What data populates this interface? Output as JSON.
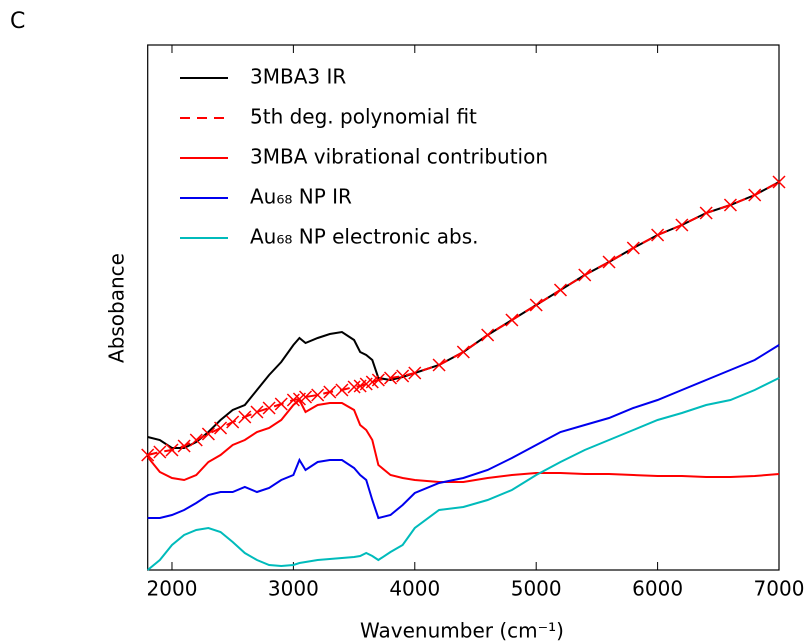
{
  "chart_data": {
    "type": "line",
    "panel_label": "C",
    "xlabel": "Wavenumber (cm⁻¹)",
    "ylabel": "Absobance",
    "x": [
      1800,
      1900,
      2000,
      2100,
      2200,
      2300,
      2400,
      2500,
      2600,
      2700,
      2800,
      2900,
      3000,
      3050,
      3100,
      3200,
      3300,
      3400,
      3500,
      3550,
      3600,
      3650,
      3700,
      3800,
      3900,
      4000,
      4200,
      4400,
      4600,
      4800,
      5000,
      5200,
      5400,
      5600,
      5800,
      6000,
      6200,
      6400,
      6600,
      6800,
      7000
    ],
    "series": [
      {
        "name": "3MBA3 IR",
        "color": "#000000",
        "values": [
          133,
          130,
          122,
          122,
          128,
          138,
          150,
          160,
          165,
          180,
          195,
          208,
          225,
          232,
          227,
          232,
          236,
          238,
          230,
          218,
          215,
          210,
          192,
          190,
          193,
          197,
          205,
          218,
          235,
          250,
          265,
          280,
          295,
          308,
          322,
          335,
          345,
          357,
          365,
          375,
          388
        ]
      },
      {
        "name": "5th deg. polynomial fit",
        "color": "#ff0000",
        "dashed": true,
        "marker": "x",
        "values": [
          115,
          118,
          120,
          124,
          130,
          136,
          142,
          148,
          153,
          158,
          162,
          166,
          170,
          171,
          173,
          175,
          178,
          180,
          183,
          184,
          186,
          188,
          190,
          192,
          194,
          197,
          205,
          218,
          235,
          250,
          265,
          280,
          295,
          308,
          322,
          335,
          345,
          357,
          365,
          375,
          388
        ]
      },
      {
        "name": "3MBA vibrational contribution",
        "color": "#ff0000",
        "values": [
          113,
          98,
          92,
          90,
          95,
          108,
          115,
          125,
          130,
          138,
          142,
          150,
          165,
          170,
          158,
          165,
          167,
          167,
          160,
          145,
          140,
          130,
          105,
          95,
          92,
          90,
          88,
          88,
          92,
          95,
          97,
          97,
          96,
          96,
          95,
          94,
          94,
          93,
          93,
          94,
          96
        ]
      },
      {
        "name": "Au₆₈ NP IR",
        "color": "#0000ee",
        "values": [
          52,
          52,
          55,
          60,
          67,
          75,
          78,
          78,
          83,
          78,
          82,
          90,
          95,
          110,
          100,
          108,
          110,
          110,
          102,
          95,
          90,
          70,
          52,
          55,
          65,
          77,
          87,
          92,
          100,
          112,
          125,
          138,
          145,
          152,
          162,
          170,
          180,
          190,
          200,
          210,
          225
        ]
      },
      {
        "name": "Au₆₈ NP electronic abs.",
        "color": "#00bbbb",
        "values": [
          0,
          10,
          25,
          35,
          40,
          42,
          38,
          28,
          17,
          10,
          5,
          4,
          5,
          7,
          8,
          10,
          11,
          12,
          13,
          14,
          17,
          14,
          10,
          18,
          25,
          42,
          60,
          63,
          70,
          80,
          95,
          108,
          120,
          130,
          140,
          150,
          157,
          165,
          170,
          180,
          192
        ]
      }
    ],
    "xlim": [
      1800,
      7000
    ],
    "xticks": [
      2000,
      3000,
      4000,
      5000,
      6000,
      7000
    ],
    "ylim": [
      0,
      525
    ],
    "legend": "upper left"
  }
}
